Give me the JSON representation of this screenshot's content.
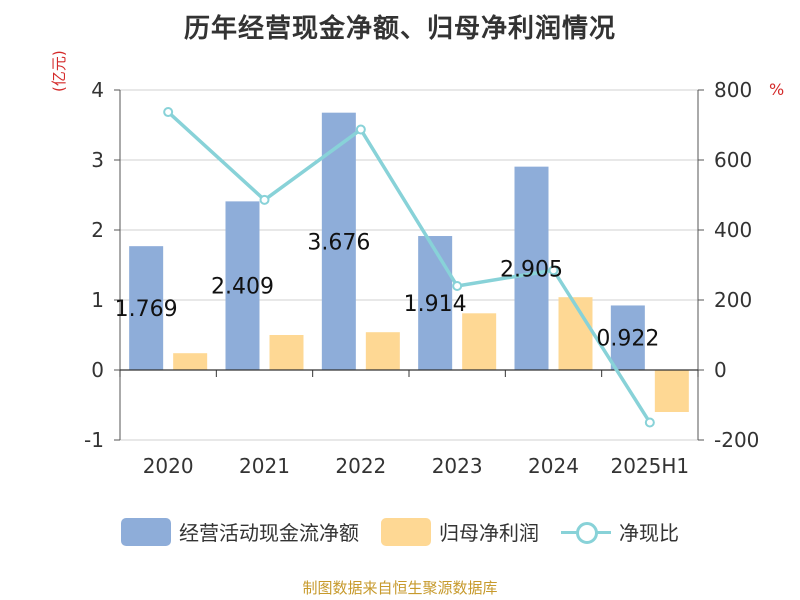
{
  "title": "历年经营现金净额、归母净利润情况",
  "left_unit": "(亿元)",
  "right_unit": "%",
  "legend": {
    "items": [
      {
        "label": "经营活动现金流净额",
        "color": "#8eadd9",
        "kind": "bar"
      },
      {
        "label": "归母净利润",
        "color": "#fed894",
        "kind": "bar"
      },
      {
        "label": "净现比",
        "color": "#88d2d8",
        "kind": "line"
      }
    ]
  },
  "source": "制图数据来自恒生聚源数据库",
  "chart_data": {
    "type": "bar",
    "categories": [
      "2020",
      "2021",
      "2022",
      "2023",
      "2024",
      "2025H1"
    ],
    "series": [
      {
        "name": "经营活动现金流净额",
        "type": "bar",
        "axis": "left",
        "color": "#8eadd9",
        "values": [
          1.769,
          2.409,
          3.676,
          1.914,
          2.905,
          0.922
        ],
        "labels": [
          "1.769",
          "2.409",
          "3.676",
          "1.914",
          "2.905",
          "0.922"
        ]
      },
      {
        "name": "归母净利润",
        "type": "bar",
        "axis": "left",
        "color": "#fed894",
        "values": [
          0.24,
          0.5,
          0.54,
          0.81,
          1.04,
          -0.6
        ]
      },
      {
        "name": "净现比",
        "type": "line",
        "axis": "right",
        "color": "#88d2d8",
        "values": [
          737,
          486,
          687,
          240,
          285,
          -150
        ]
      }
    ],
    "left_axis": {
      "unit": "(亿元)",
      "ylim": [
        -1,
        4
      ],
      "ticks": [
        -1,
        0,
        1,
        2,
        3,
        4
      ],
      "tick_labels": [
        "-1",
        "0",
        "1",
        "2",
        "3",
        "4"
      ]
    },
    "right_axis": {
      "unit": "%",
      "ylim": [
        -200,
        800
      ],
      "ticks": [
        -200,
        0,
        200,
        400,
        600,
        800
      ],
      "tick_labels": [
        "-200",
        "0",
        "200",
        "400",
        "600",
        "800"
      ]
    },
    "grid": true,
    "legend_position": "bottom"
  }
}
